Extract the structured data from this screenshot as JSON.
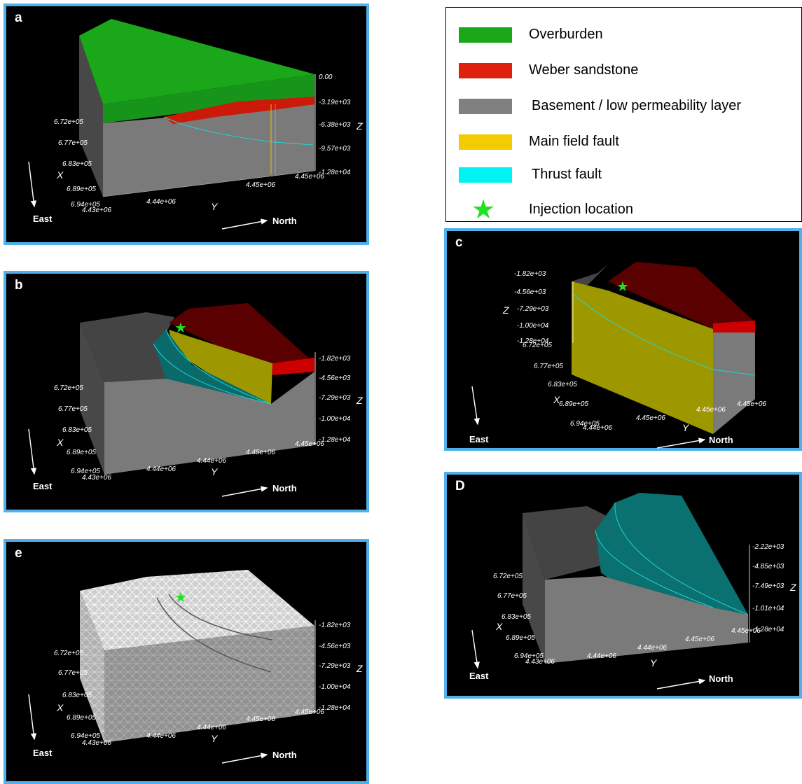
{
  "legend": {
    "items": [
      {
        "label": "Overburden",
        "color": "#1aa81a"
      },
      {
        "label": "Weber sandstone",
        "color": "#e0200f"
      },
      {
        "label": "Basement  / low permeability layer",
        "color": "#808080"
      },
      {
        "label": "Main field fault",
        "color": "#f2cc00"
      },
      {
        "label": "Thrust fault",
        "color": "#00f2f2"
      },
      {
        "label": "Injection location",
        "icon": "star-icon",
        "color": "#22e022"
      }
    ]
  },
  "directions": {
    "east": "East",
    "north": "North"
  },
  "axes": {
    "x": "X",
    "y": "Y",
    "z": "Z"
  },
  "panels": {
    "a": {
      "label": "a",
      "x_ticks": [
        "6.72e+05",
        "6.77e+05",
        "6.83e+05",
        "6.89e+05",
        "6.94e+05"
      ],
      "y_ticks": [
        "4.43e+06",
        "4.44e+06",
        "4.45e+06",
        "4.45e+06"
      ],
      "z_ticks": [
        "0.00",
        "-3.19e+03",
        "-6.38e+03",
        "-9.57e+03",
        "-1.28e+04"
      ]
    },
    "b": {
      "label": "b",
      "x_ticks": [
        "6.72e+05",
        "6.77e+05",
        "6.83e+05",
        "6.89e+05",
        "6.94e+05"
      ],
      "y_ticks": [
        "4.43e+06",
        "4.44e+06",
        "4.44e+06",
        "4.45e+06",
        "4.45e+06"
      ],
      "z_ticks": [
        "-1.82e+03",
        "-4.56e+03",
        "-7.29e+03",
        "-1.00e+04",
        "-1.28e+04"
      ]
    },
    "c": {
      "label": "c",
      "x_ticks": [
        "6.72e+05",
        "6.77e+05",
        "6.83e+05",
        "6.89e+05",
        "6.94e+05"
      ],
      "y_ticks": [
        "4.44e+06",
        "4.45e+06",
        "4.45e+06",
        "4.45e+06"
      ],
      "z_ticks": [
        "-1.82e+03",
        "-4.56e+03",
        "-7.29e+03",
        "-1.00e+04",
        "-1.28e+04"
      ]
    },
    "d": {
      "label": "D",
      "x_ticks": [
        "6.72e+05",
        "6.77e+05",
        "6.83e+05",
        "6.89e+05",
        "6.94e+05"
      ],
      "y_ticks": [
        "4.43e+06",
        "4.44e+06",
        "4.44e+06",
        "4.45e+06",
        "4.45e+06"
      ],
      "z_ticks": [
        "-2.22e+03",
        "-4.85e+03",
        "-7.49e+03",
        "-1.01e+04",
        "-1.28e+04"
      ]
    },
    "e": {
      "label": "e",
      "x_ticks": [
        "6.72e+05",
        "6.77e+05",
        "6.83e+05",
        "6.89e+05",
        "6.94e+05"
      ],
      "y_ticks": [
        "4.43e+06",
        "4.44e+06",
        "4.44e+06",
        "4.45e+06",
        "4.45e+06"
      ],
      "z_ticks": [
        "-1.82e+03",
        "-4.56e+03",
        "-7.29e+03",
        "-1.00e+04",
        "-1.28e+04"
      ]
    }
  }
}
